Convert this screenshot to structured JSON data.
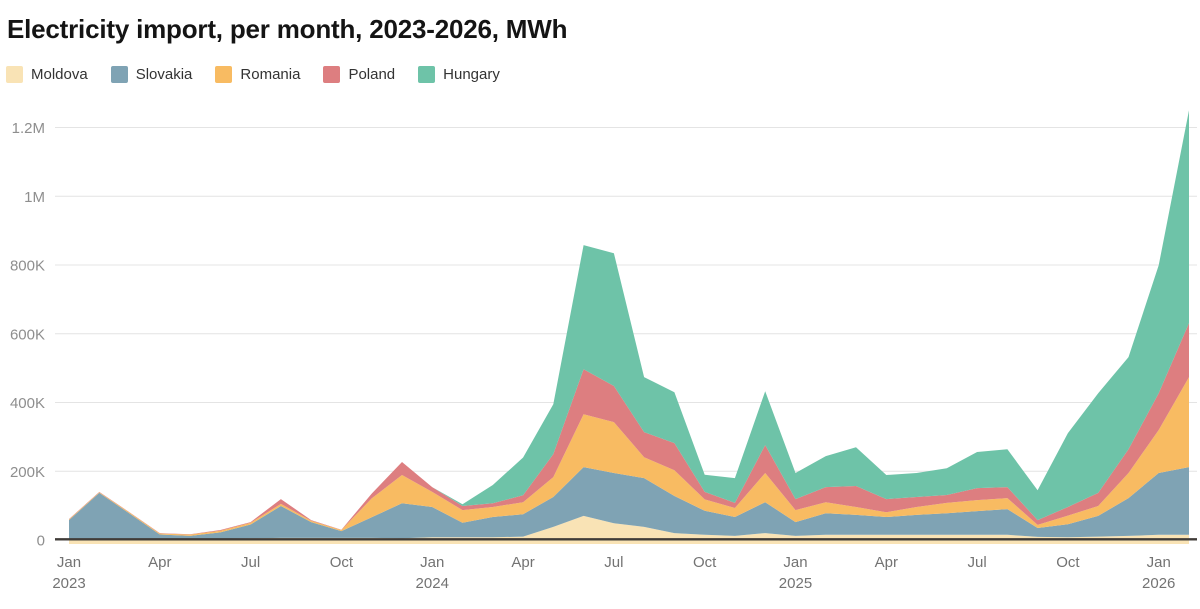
{
  "page": {
    "title": "Electricity import, per month, 2023-2026, MWh"
  },
  "chart_data": {
    "type": "area",
    "stacked": true,
    "title": "Electricity import, per month, 2023-2026, MWh",
    "unit": "MWh",
    "legend_position": "top",
    "grid": true,
    "background": "#ffffff",
    "grid_color": "#e4e4e4",
    "axis_line_color": "#403c38",
    "x_months": [
      "2023-01",
      "2023-02",
      "2023-03",
      "2023-04",
      "2023-05",
      "2023-06",
      "2023-07",
      "2023-08",
      "2023-09",
      "2023-10",
      "2023-11",
      "2023-12",
      "2024-01",
      "2024-02",
      "2024-03",
      "2024-04",
      "2024-05",
      "2024-06",
      "2024-07",
      "2024-08",
      "2024-09",
      "2024-10",
      "2024-11",
      "2024-12",
      "2025-01",
      "2025-02",
      "2025-03",
      "2025-04",
      "2025-05",
      "2025-06",
      "2025-07",
      "2025-08",
      "2025-09",
      "2025-10",
      "2025-11",
      "2025-12",
      "2026-01",
      "2026-02"
    ],
    "y_axis": {
      "min": 0,
      "max": 1300000,
      "grid_interval": 200000,
      "ticks": [
        {
          "value": 0,
          "label": "0"
        },
        {
          "value": 200000,
          "label": "200K"
        },
        {
          "value": 400000,
          "label": "400K"
        },
        {
          "value": 600000,
          "label": "600K"
        },
        {
          "value": 800000,
          "label": "800K"
        },
        {
          "value": 1000000,
          "label": "1M"
        },
        {
          "value": 1200000,
          "label": "1.2M"
        }
      ]
    },
    "x_axis": {
      "ticks": [
        {
          "index": 0,
          "label": "Jan",
          "year": "2023"
        },
        {
          "index": 3,
          "label": "Apr"
        },
        {
          "index": 6,
          "label": "Jul"
        },
        {
          "index": 9,
          "label": "Oct"
        },
        {
          "index": 12,
          "label": "Jan",
          "year": "2024"
        },
        {
          "index": 15,
          "label": "Apr"
        },
        {
          "index": 18,
          "label": "Jul"
        },
        {
          "index": 21,
          "label": "Oct"
        },
        {
          "index": 24,
          "label": "Jan",
          "year": "2025"
        },
        {
          "index": 27,
          "label": "Apr"
        },
        {
          "index": 30,
          "label": "Jul"
        },
        {
          "index": 33,
          "label": "Oct"
        },
        {
          "index": 36,
          "label": "Jan",
          "year": "2026"
        }
      ]
    },
    "series": [
      {
        "name": "Moldova",
        "color": "#F9E3B5",
        "values": [
          1000,
          1000,
          1000,
          2000,
          3000,
          4000,
          5000,
          6000,
          6000,
          6000,
          6000,
          5000,
          8000,
          8000,
          8000,
          10000,
          38000,
          70000,
          49000,
          38000,
          20000,
          15000,
          12000,
          20000,
          12000,
          15000,
          15000,
          15000,
          15000,
          15000,
          15000,
          15000,
          9000,
          8000,
          10000,
          12000,
          15000,
          15000
        ]
      },
      {
        "name": "Slovakia",
        "color": "#7FA3B4",
        "values": [
          57000,
          136000,
          76000,
          14000,
          9000,
          18000,
          40000,
          93000,
          46000,
          20000,
          60000,
          102000,
          88000,
          42000,
          59000,
          65000,
          87000,
          142000,
          146000,
          142000,
          108000,
          70000,
          55000,
          90000,
          40000,
          63000,
          58000,
          52000,
          58000,
          63000,
          69000,
          75000,
          26000,
          38000,
          60000,
          110000,
          180000,
          197000
        ]
      },
      {
        "name": "Romania",
        "color": "#F8BB62",
        "values": [
          2000,
          2000,
          3000,
          3000,
          4000,
          5000,
          5000,
          6000,
          4000,
          3000,
          55000,
          82000,
          44000,
          37000,
          29000,
          35000,
          58000,
          154000,
          148000,
          61000,
          75000,
          33000,
          26000,
          85000,
          35000,
          32000,
          23000,
          14000,
          23000,
          30000,
          32000,
          32000,
          9000,
          25000,
          29000,
          73000,
          125000,
          262000
        ]
      },
      {
        "name": "Poland",
        "color": "#DD7E80",
        "values": [
          1000,
          1000,
          1000,
          1000,
          1000,
          2000,
          2000,
          14000,
          2000,
          1000,
          14000,
          38000,
          14000,
          12000,
          11000,
          20000,
          67000,
          131000,
          105000,
          73000,
          79000,
          22000,
          15000,
          81000,
          32000,
          44000,
          61000,
          38000,
          29000,
          23000,
          35000,
          32000,
          14000,
          25000,
          38000,
          69000,
          107000,
          157000
        ]
      },
      {
        "name": "Hungary",
        "color": "#6EC3A8",
        "values": [
          0,
          0,
          0,
          0,
          0,
          0,
          0,
          0,
          0,
          0,
          0,
          0,
          0,
          5000,
          53000,
          110000,
          145000,
          361000,
          386000,
          160000,
          148000,
          50000,
          72000,
          157000,
          76000,
          90000,
          113000,
          70000,
          70000,
          78000,
          105000,
          110000,
          87000,
          215000,
          290000,
          268000,
          372000,
          619000
        ]
      }
    ]
  }
}
